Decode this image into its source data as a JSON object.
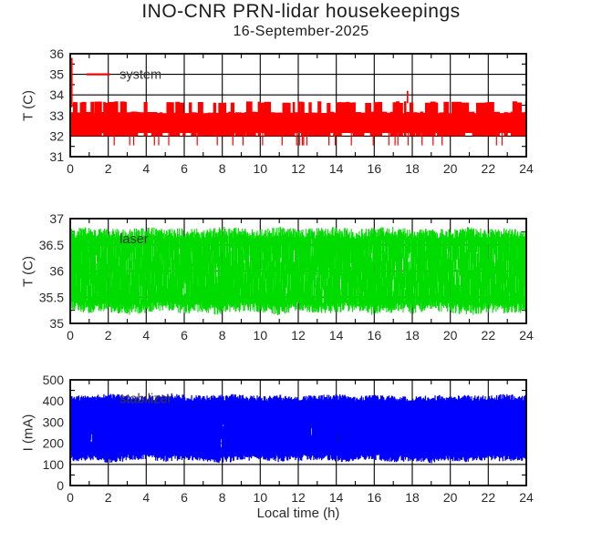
{
  "title": "INO-CNR PRN-lidar housekeepings",
  "subtitle": "16-September-2025",
  "xlabel": "Local time (h)",
  "text_color": "#2b2b2b",
  "axis_color": "#000000",
  "chart_data": [
    {
      "type": "line",
      "name": "system",
      "series": [
        {
          "name": "system",
          "color": "#ff0000"
        }
      ],
      "ylabel": "T (C)",
      "ylim": [
        31,
        36
      ],
      "yticks": [
        31,
        32,
        33,
        34,
        35,
        36
      ],
      "ytick_labels": [
        "31",
        "32",
        "33",
        "34",
        "35",
        "36"
      ],
      "yminor": [
        31.5,
        32.5,
        33.5,
        34.5,
        35.5
      ],
      "xlim": [
        0,
        24
      ],
      "xticks": [
        0,
        2,
        4,
        6,
        8,
        10,
        12,
        14,
        16,
        18,
        20,
        22,
        24
      ],
      "xtick_labels": [
        "0",
        "2",
        "4",
        "6",
        "8",
        "10",
        "12",
        "14",
        "16",
        "18",
        "20",
        "22",
        "24"
      ],
      "xminor": [
        1,
        3,
        5,
        7,
        9,
        11,
        13,
        15,
        17,
        19,
        21,
        23
      ],
      "grid": true,
      "legend": {
        "label": "system",
        "line_x": [
          0.85,
          2.1
        ],
        "line_y": 35.0,
        "text_x": 2.6,
        "text_color": "#3a3a3a",
        "position": "upper-left"
      },
      "noise_band": {
        "kind": "blocks",
        "seed": 11,
        "step_h": 0.04,
        "block_h": [
          0.06,
          0.3
        ],
        "top_levels": [
          33.15,
          33.65
        ],
        "top_high_prob": 0.45,
        "bottom_levels": [
          32.0,
          32.15
        ],
        "bottom_high_prob": 0.28,
        "dip_y": 31.55,
        "dip_prob": 0.15,
        "spikes": [
          {
            "x": 0.08,
            "y_from": 33.4,
            "y_to": 35.8
          },
          {
            "x": 17.75,
            "y_from": 33.6,
            "y_to": 34.2
          }
        ]
      }
    },
    {
      "type": "line",
      "name": "laser",
      "series": [
        {
          "name": "laser",
          "color": "#00dc00"
        }
      ],
      "ylabel": "T (C)",
      "ylim": [
        35,
        37
      ],
      "yticks": [
        35,
        35.5,
        36,
        36.5,
        37
      ],
      "ytick_labels": [
        "35",
        "35.5",
        "36",
        "36.5",
        "37"
      ],
      "yminor": [
        35.25,
        35.75,
        36.25,
        36.75
      ],
      "xlim": [
        0,
        24
      ],
      "xticks": [
        0,
        2,
        4,
        6,
        8,
        10,
        12,
        14,
        16,
        18,
        20,
        22,
        24
      ],
      "xtick_labels": [
        "0",
        "2",
        "4",
        "6",
        "8",
        "10",
        "12",
        "14",
        "16",
        "18",
        "20",
        "22",
        "24"
      ],
      "xminor": [
        1,
        3,
        5,
        7,
        9,
        11,
        13,
        15,
        17,
        19,
        21,
        23
      ],
      "grid": true,
      "legend": {
        "label": "laser",
        "line_x": [
          0.85,
          2.1
        ],
        "line_y": 36.62,
        "text_x": 2.6,
        "text_color": "#3a3a3a",
        "position": "upper-left"
      },
      "noise_band": {
        "kind": "envelope",
        "seed": 23,
        "step_h": 0.03,
        "gap_prob": 0.32,
        "edge_jitter": 0.12,
        "top_env": [
          36.8,
          36.85,
          36.8,
          36.82,
          36.85,
          36.8,
          36.83,
          36.8,
          36.85,
          36.82,
          36.8,
          36.85,
          36.8,
          36.82,
          36.85,
          36.8,
          36.83,
          36.85,
          36.8,
          36.82,
          36.8,
          36.85,
          36.8,
          36.83,
          36.8
        ],
        "bottom_env": [
          35.25,
          35.18,
          35.22,
          35.15,
          35.2,
          35.25,
          35.18,
          35.2,
          35.15,
          35.22,
          35.2,
          35.15,
          35.25,
          35.18,
          35.2,
          35.22,
          35.15,
          35.2,
          35.18,
          35.25,
          35.2,
          35.15,
          35.2,
          35.18,
          35.2
        ]
      }
    },
    {
      "type": "line",
      "name": "stabilizer",
      "series": [
        {
          "name": "stabilizer",
          "color": "#0000ff"
        }
      ],
      "ylabel": "I (mA)",
      "ylim": [
        0,
        500
      ],
      "yticks": [
        0,
        100,
        200,
        300,
        400,
        500
      ],
      "ytick_labels": [
        "0",
        "100",
        "200",
        "300",
        "400",
        "500"
      ],
      "yminor": [
        50,
        150,
        250,
        350,
        450
      ],
      "xlim": [
        0,
        24
      ],
      "xticks": [
        0,
        2,
        4,
        6,
        8,
        10,
        12,
        14,
        16,
        18,
        20,
        22,
        24
      ],
      "xtick_labels": [
        "0",
        "2",
        "4",
        "6",
        "8",
        "10",
        "12",
        "14",
        "16",
        "18",
        "20",
        "22",
        "24"
      ],
      "xminor": [
        1,
        3,
        5,
        7,
        9,
        11,
        13,
        15,
        17,
        19,
        21,
        23
      ],
      "grid": true,
      "legend": {
        "label": "stabilizer",
        "line_x": [
          0.85,
          2.1
        ],
        "line_y": 412,
        "text_x": 2.6,
        "text_color": "#3a3a3a",
        "position": "upper-left"
      },
      "noise_band": {
        "kind": "envelope",
        "seed": 37,
        "step_h": 0.03,
        "gap_prob": 0.14,
        "edge_jitter": 0.1,
        "top_env": [
          430,
          425,
          435,
          430,
          425,
          440,
          430,
          425,
          430,
          435,
          425,
          430,
          425,
          430,
          435,
          425,
          430,
          425,
          420,
          430,
          425,
          430,
          425,
          435,
          430
        ],
        "bottom_env": [
          110,
          120,
          105,
          115,
          125,
          110,
          120,
          115,
          105,
          115,
          120,
          110,
          115,
          120,
          110,
          115,
          120,
          110,
          115,
          105,
          115,
          110,
          120,
          110,
          115
        ]
      }
    }
  ]
}
